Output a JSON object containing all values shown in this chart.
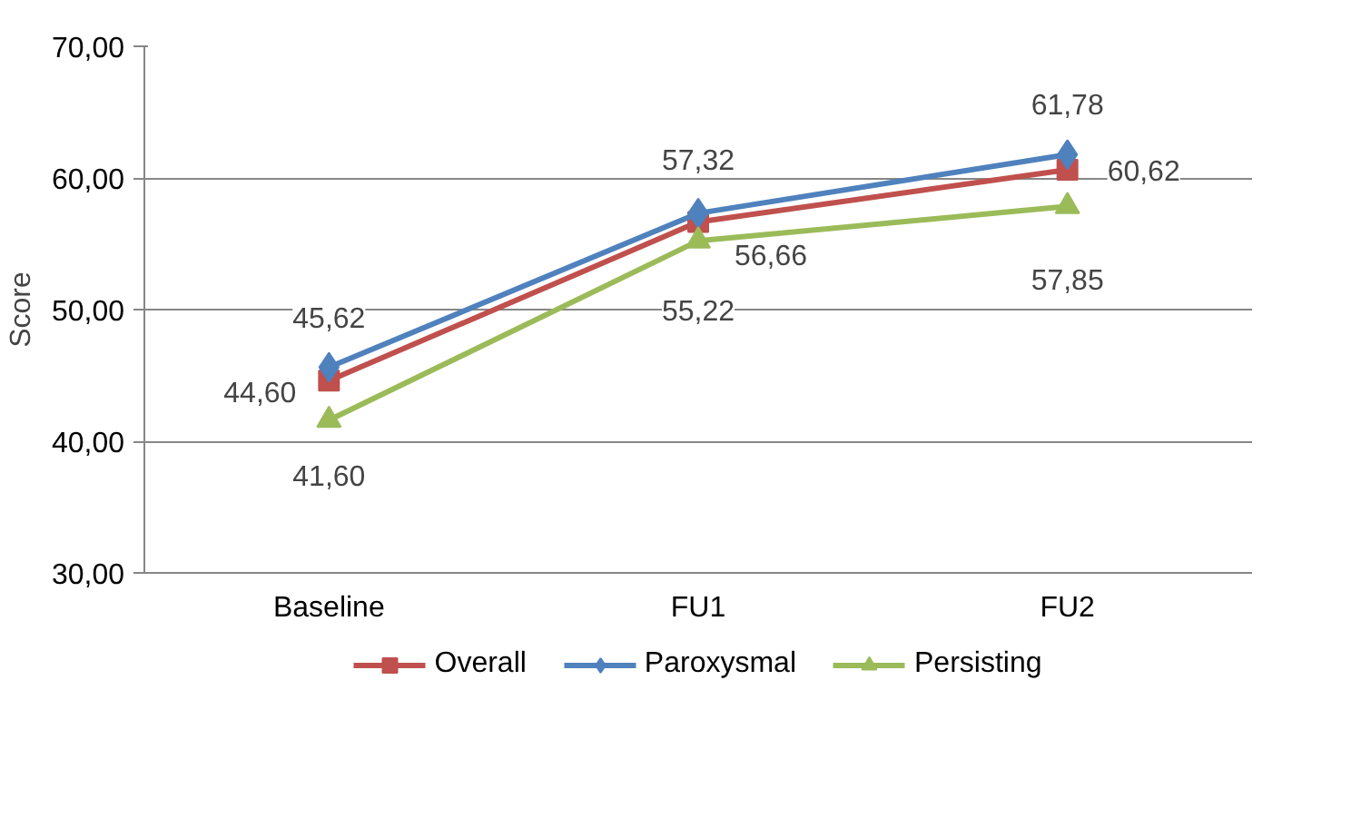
{
  "chart_data": {
    "type": "line",
    "ylabel": "Score",
    "categories": [
      "Baseline",
      "FU1",
      "FU2"
    ],
    "ylim": [
      30,
      70
    ],
    "yticks": [
      {
        "value": 30,
        "label": "30,00"
      },
      {
        "value": 40,
        "label": "40,00"
      },
      {
        "value": 50,
        "label": "50,00"
      },
      {
        "value": 60,
        "label": "60,00"
      },
      {
        "value": 70,
        "label": "70,00"
      }
    ],
    "grid": "y",
    "legend": "bottom",
    "line_style": "solid",
    "series": [
      {
        "name": "Overall",
        "color": "#c0504d",
        "marker": "square",
        "values": [
          44.6,
          56.66,
          60.62
        ],
        "value_labels": [
          "44,60",
          "56,66",
          "60,62"
        ]
      },
      {
        "name": "Paroxysmal",
        "color": "#4f81bd",
        "marker": "diamond",
        "values": [
          45.62,
          57.32,
          61.78
        ],
        "value_labels": [
          "45,62",
          "57,32",
          "61,78"
        ]
      },
      {
        "name": "Persisting",
        "color": "#9bbb59",
        "marker": "triangle",
        "values": [
          41.6,
          55.22,
          57.85
        ],
        "value_labels": [
          "41,60",
          "55,22",
          "57,85"
        ]
      }
    ]
  }
}
